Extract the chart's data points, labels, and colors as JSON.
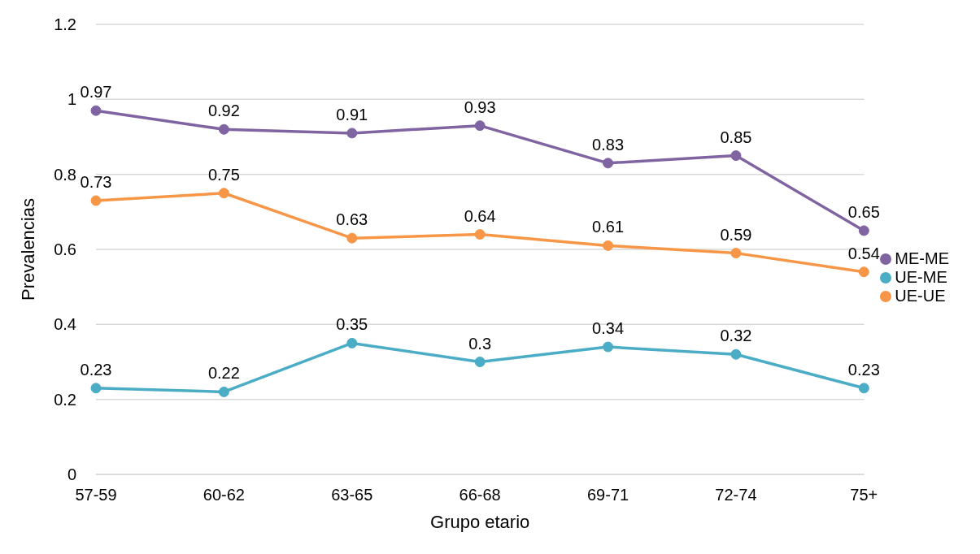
{
  "chart_data": {
    "type": "line",
    "xlabel": "Grupo etario",
    "ylabel": "Prevalencias",
    "categories": [
      "57-59",
      "60-62",
      "63-65",
      "66-68",
      "69-71",
      "72-74",
      "75+"
    ],
    "series": [
      {
        "name": "UE-UE",
        "color": "#f79646",
        "values": [
          0.73,
          0.75,
          0.63,
          0.64,
          0.61,
          0.59,
          0.54
        ]
      },
      {
        "name": "UE-ME",
        "color": "#4bacc6",
        "values": [
          0.23,
          0.22,
          0.35,
          0.3,
          0.34,
          0.32,
          0.23
        ]
      },
      {
        "name": "ME-ME",
        "color": "#8064a2",
        "values": [
          0.97,
          0.92,
          0.91,
          0.93,
          0.83,
          0.85,
          0.65
        ]
      }
    ],
    "ylim": [
      0,
      1.2
    ],
    "yticks": [
      0,
      0.2,
      0.4,
      0.6,
      0.8,
      1,
      1.2
    ],
    "grid": "y",
    "legend": "right",
    "marker": "circle",
    "data_labels": true
  }
}
